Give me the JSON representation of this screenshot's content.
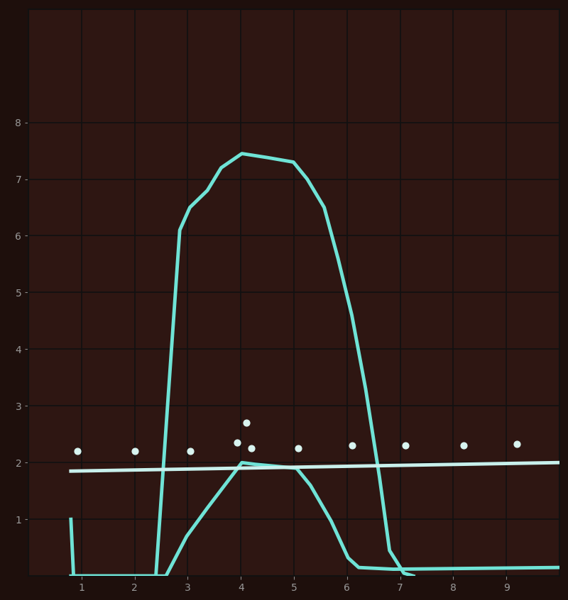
{
  "chart_data": {
    "type": "line",
    "xlim": [
      0,
      10
    ],
    "ylim": [
      0,
      10
    ],
    "xticks": [
      1,
      2,
      3,
      4,
      5,
      6,
      7,
      8,
      9
    ],
    "yticks": [
      1,
      2,
      3,
      4,
      5,
      6,
      7,
      8
    ],
    "grid": true,
    "series": [
      {
        "type": "line",
        "color": "#6fe3d6",
        "line_style": "solid",
        "x": [
          0.8,
          0.85,
          1.5,
          2.4,
          2.62,
          2.85,
          3.04,
          3.37,
          3.63,
          4.02,
          4.5,
          4.99,
          5.25,
          5.57,
          5.83,
          6.09,
          6.35,
          6.61,
          6.8,
          7.07,
          7.25
        ],
        "values": [
          1.0,
          0.0,
          0.0,
          0.0,
          3.0,
          6.1,
          6.5,
          6.8,
          7.2,
          7.45,
          7.38,
          7.3,
          7.0,
          6.5,
          5.6,
          4.6,
          3.3,
          1.75,
          0.45,
          0.05,
          0.0
        ]
      },
      {
        "type": "line",
        "color": "#6fe3d6",
        "line_style": "solid",
        "x": [
          0.8,
          2.59,
          2.98,
          3.37,
          4.02,
          4.27,
          5.05,
          5.31,
          5.7,
          6.02,
          6.22,
          6.87,
          9.97
        ],
        "values": [
          0.0,
          0.0,
          0.7,
          1.2,
          2.0,
          1.97,
          1.9,
          1.6,
          0.97,
          0.32,
          0.15,
          0.12,
          0.15
        ]
      },
      {
        "type": "line",
        "color": "#c8f0ec",
        "line_style": "solid",
        "x": [
          0.8,
          9.97
        ],
        "values": [
          1.85,
          2.0
        ]
      },
      {
        "type": "scatter",
        "color": "#d8f4f0",
        "marker": "o",
        "x": [
          0.92,
          2.0,
          3.05,
          3.93,
          4.1,
          4.2,
          5.08,
          6.09,
          7.1,
          8.19,
          9.2
        ],
        "values": [
          2.2,
          2.2,
          2.2,
          2.35,
          2.7,
          2.25,
          2.25,
          2.3,
          2.3,
          2.3,
          2.33
        ]
      }
    ]
  }
}
